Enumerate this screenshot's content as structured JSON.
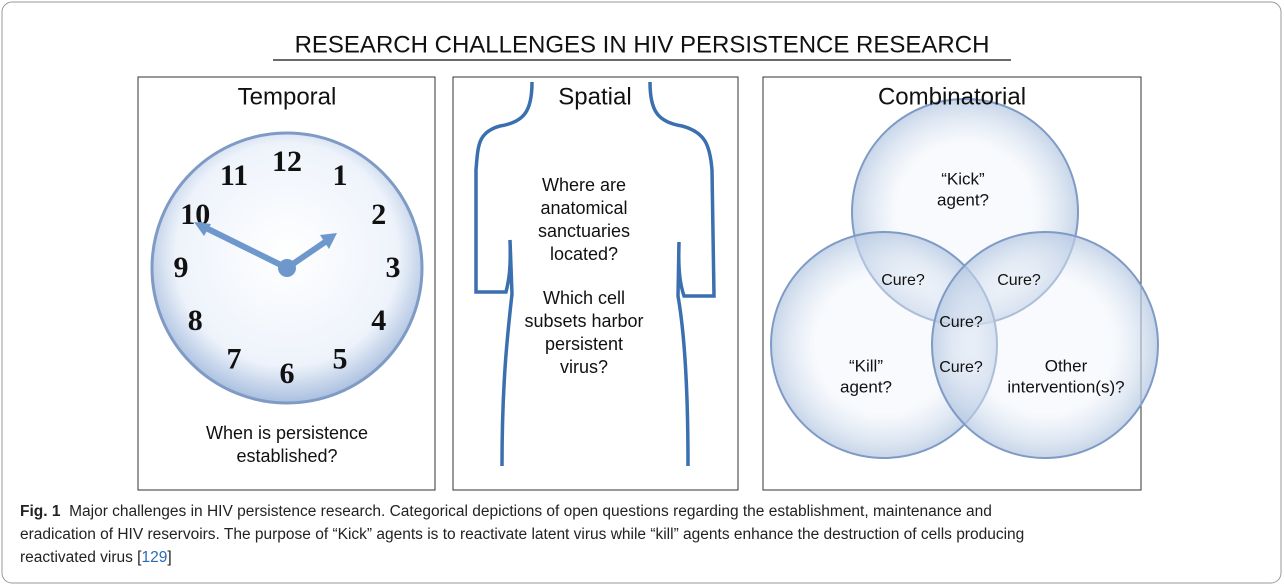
{
  "title": "RESEARCH CHALLENGES IN HIV PERSISTENCE RESEARCH",
  "panels": [
    {
      "title": "Temporal",
      "question": [
        "When is persistence",
        "established?"
      ],
      "clock_numbers": [
        "12",
        "1",
        "2",
        "3",
        "4",
        "5",
        "6",
        "7",
        "8",
        "9",
        "10",
        "11"
      ]
    },
    {
      "title": "Spatial",
      "question_1": [
        "Where are",
        "anatomical",
        "sanctuaries",
        "located?"
      ],
      "question_2": [
        "Which cell",
        "subsets harbor",
        "persistent",
        "virus?"
      ]
    },
    {
      "title": "Combinatorial",
      "kick": [
        "“Kick”",
        "agent?"
      ],
      "kill": [
        "“Kill”",
        "agent?"
      ],
      "other": [
        "Other",
        "intervention(s)?"
      ],
      "cure": [
        "Cure?",
        "Cure?",
        "Cure?",
        "Cure?"
      ]
    }
  ],
  "caption": {
    "label": "Fig. 1",
    "lines": [
      "Major challenges in HIV persistence research. Categorical depictions of open questions regarding the establishment, maintenance and",
      "eradication of HIV reservoirs. The purpose of “Kick” agents is to reactivate latent virus while “kill” agents enhance the destruction of cells producing",
      "reactivated virus"
    ],
    "ref_open": "[",
    "ref": "129",
    "ref_close": "]"
  }
}
